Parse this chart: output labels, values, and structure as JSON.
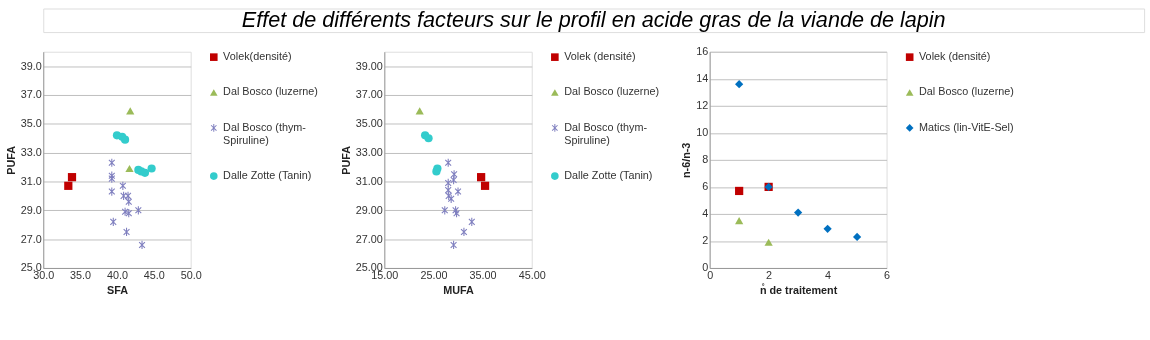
{
  "chart_data": [
    {
      "type": "other",
      "title": "Effet de différents facteurs sur le profil en acide gras de la viande de lapin"
    },
    {
      "type": "scatter",
      "xlabel": "SFA",
      "ylabel": "PUFA",
      "xlim": [
        30,
        50
      ],
      "ylim": [
        25,
        40
      ],
      "xticks": [
        {
          "value": 30,
          "label": "30.0"
        },
        {
          "value": 35,
          "label": "35.0"
        },
        {
          "value": 40,
          "label": "40.0"
        },
        {
          "value": 45,
          "label": "45.0"
        },
        {
          "value": 50,
          "label": "50.0"
        }
      ],
      "yticks": [
        {
          "value": 25,
          "label": "25.0"
        },
        {
          "value": 27,
          "label": "27.0"
        },
        {
          "value": 29,
          "label": "29.0"
        },
        {
          "value": 31,
          "label": "31.0"
        },
        {
          "value": 33,
          "label": "33.0"
        },
        {
          "value": 35,
          "label": "35.0"
        },
        {
          "value": 37,
          "label": "37.0"
        },
        {
          "value": 39,
          "label": "39.0"
        }
      ],
      "grid": "y",
      "legend": "right",
      "series": [
        {
          "name": "Volek(densité)",
          "color": "#c00000",
          "marker": "square",
          "x": [
            33.4,
            33.9
          ],
          "values": [
            30.7,
            31.3
          ]
        },
        {
          "name": "Dal Bosco (luzerne)",
          "color": "#9bbb59",
          "marker": "triangle",
          "x": [
            41.8,
            41.7
          ],
          "values": [
            35.9,
            31.9
          ]
        },
        {
          "name": "Dal Bosco (thym-Spiruline)",
          "color": "#7f7fbf",
          "marker": "cross",
          "x": [
            39.3,
            39.3,
            39.3,
            39.3,
            39.5,
            40.8,
            40.9,
            41.5,
            41.6,
            41.1,
            41.6,
            41.3,
            42.9,
            43.4
          ],
          "values": [
            32.3,
            31.4,
            31.2,
            30.3,
            28.2,
            30.7,
            30.0,
            30.0,
            29.6,
            28.9,
            28.8,
            27.5,
            29.0,
            26.6
          ]
        },
        {
          "name": "Dalle Zotte  (Tanin)",
          "color": "#33cccc",
          "marker": "circle",
          "x": [
            40.0,
            40.7,
            41.1,
            42.9,
            43.3,
            43.8,
            44.7
          ],
          "values": [
            34.2,
            34.1,
            33.9,
            31.8,
            31.7,
            31.6,
            31.9
          ]
        }
      ]
    },
    {
      "type": "scatter",
      "xlabel": "MUFA",
      "ylabel": "PUFA",
      "xlim": [
        15,
        45
      ],
      "ylim": [
        25,
        40
      ],
      "xticks": [
        {
          "value": 15,
          "label": "15.00"
        },
        {
          "value": 25,
          "label": "25.00"
        },
        {
          "value": 35,
          "label": "35.00"
        },
        {
          "value": 45,
          "label": "45.00"
        }
      ],
      "yticks": [
        {
          "value": 25,
          "label": "25.00"
        },
        {
          "value": 27,
          "label": "27.00"
        },
        {
          "value": 29,
          "label": "29.00"
        },
        {
          "value": 31,
          "label": "31.00"
        },
        {
          "value": 33,
          "label": "33.00"
        },
        {
          "value": 35,
          "label": "35.00"
        },
        {
          "value": 37,
          "label": "37.00"
        },
        {
          "value": 39,
          "label": "39.00"
        }
      ],
      "grid": "y",
      "legend": "right",
      "series": [
        {
          "name": "Volek (densité)",
          "color": "#c00000",
          "marker": "square",
          "x": [
            34.7,
            35.5
          ],
          "values": [
            31.3,
            30.7
          ]
        },
        {
          "name": "Dal Bosco (luzerne)",
          "color": "#9bbb59",
          "marker": "triangle",
          "x": [
            22.2
          ],
          "values": [
            35.9
          ]
        },
        {
          "name": "Dal Bosco (thym-Spiruline)",
          "color": "#7f7fbf",
          "marker": "cross",
          "x": [
            28.0,
            29.2,
            29.1,
            28.0,
            28.0,
            30.0,
            28.1,
            28.6,
            27.3,
            29.5,
            29.7,
            31.2,
            32.8,
            29.1
          ],
          "values": [
            32.3,
            31.5,
            31.1,
            30.9,
            30.4,
            30.3,
            30.0,
            29.8,
            29.0,
            29.0,
            28.8,
            27.5,
            28.2,
            26.6
          ]
        },
        {
          "name": "Dalle Zotte (Tanin)",
          "color": "#33cccc",
          "marker": "circle",
          "x": [
            23.3,
            24.0,
            25.8,
            25.6
          ],
          "values": [
            34.2,
            34.0,
            31.9,
            31.7
          ]
        }
      ]
    },
    {
      "type": "scatter",
      "xlabel": "n̊ de traitement",
      "ylabel": "n-6/n-3",
      "xlim": [
        0,
        6
      ],
      "ylim": [
        0,
        16
      ],
      "xticks": [
        0,
        2,
        4,
        6
      ],
      "yticks": [
        0,
        2,
        4,
        6,
        8,
        10,
        12,
        14,
        16
      ],
      "grid": "y",
      "legend": "right",
      "series": [
        {
          "name": "Volek (densité)",
          "color": "#c00000",
          "marker": "square",
          "x": [
            1,
            2
          ],
          "values": [
            5.7,
            6.0
          ]
        },
        {
          "name": "Dal Bosco (luzerne)",
          "color": "#9bbb59",
          "marker": "triangle",
          "x": [
            1,
            2
          ],
          "values": [
            3.5,
            1.9
          ]
        },
        {
          "name": "Matics (lin-VitE-Sel)",
          "color": "#0070c0",
          "marker": "diamond",
          "x": [
            1,
            2,
            3,
            4,
            5
          ],
          "values": [
            13.6,
            6.0,
            4.1,
            2.9,
            2.3
          ]
        }
      ]
    }
  ]
}
